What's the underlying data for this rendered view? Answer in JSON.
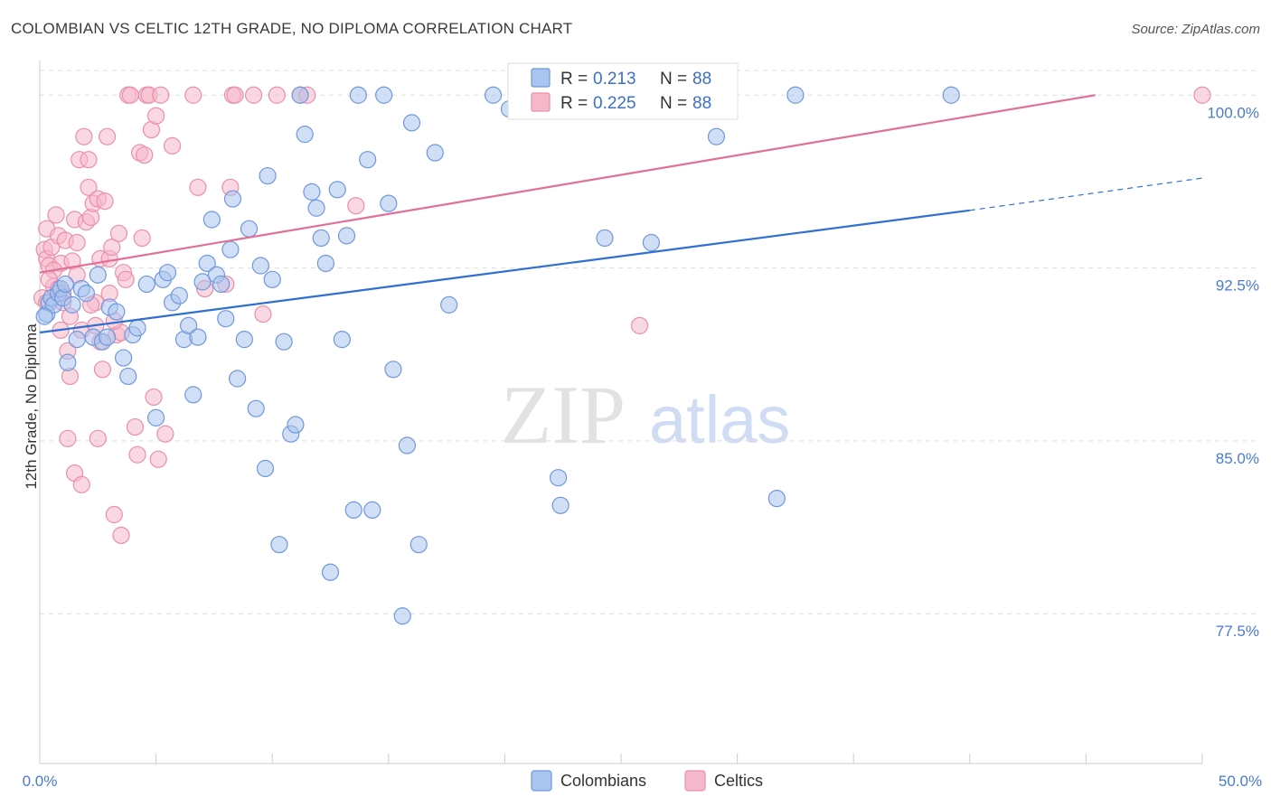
{
  "title": "COLOMBIAN VS CELTIC 12TH GRADE, NO DIPLOMA CORRELATION CHART",
  "source": "Source: ZipAtlas.com",
  "colors": {
    "colombians_fill": "#a9c4ef",
    "colombians_stroke": "#6f98dd",
    "colombians_line": "#2f6fd0",
    "celtics_fill": "#f5b8cb",
    "celtics_stroke": "#ea8fac",
    "celtics_line": "#e0709a",
    "grid": "#dddddd",
    "tick_label": "#4a7bd0"
  },
  "legend": {
    "colombians": {
      "r_label": "R =",
      "r_value": "0.213",
      "n_label": "N =",
      "n_value": "88"
    },
    "celtics": {
      "r_label": "R =",
      "r_value": "0.225",
      "n_label": "N =",
      "n_value": "88"
    }
  },
  "watermark": {
    "zip": "ZIP",
    "atlas": "atlas"
  },
  "chart_data": {
    "type": "scatter",
    "title": "COLOMBIAN VS CELTIC 12TH GRADE, NO DIPLOMA CORRELATION CHART",
    "xlabel": "",
    "ylabel": "12th Grade, No Diploma",
    "xlim": [
      0,
      50
    ],
    "ylim": [
      71,
      101.5
    ],
    "x_tick_labels": [
      "0.0%",
      "50.0%"
    ],
    "y_ticks": [
      77.5,
      85.0,
      92.5,
      100.0
    ],
    "y_tick_labels": [
      "77.5%",
      "85.0%",
      "92.5%",
      "100.0%"
    ],
    "grid": true,
    "legend_placement": "top-center",
    "series": [
      {
        "name": "Colombians",
        "r": 0.213,
        "n": 88,
        "trend": {
          "x0": 0,
          "y0": 89.7,
          "x1": 40,
          "y1": 95.0,
          "dashed_to_x": 50,
          "dashed_to_y": 96.4
        },
        "points": [
          [
            0.3,
            90.5
          ],
          [
            0.4,
            91.0
          ],
          [
            0.5,
            91.2
          ],
          [
            0.6,
            90.9
          ],
          [
            0.8,
            91.4
          ],
          [
            0.9,
            91.6
          ],
          [
            1.0,
            91.2
          ],
          [
            1.2,
            88.4
          ],
          [
            1.4,
            90.9
          ],
          [
            1.6,
            89.4
          ],
          [
            1.8,
            91.6
          ],
          [
            2.0,
            91.4
          ],
          [
            2.3,
            89.5
          ],
          [
            2.5,
            92.2
          ],
          [
            2.7,
            89.3
          ],
          [
            2.9,
            89.5
          ],
          [
            3.0,
            90.8
          ],
          [
            3.3,
            90.6
          ],
          [
            3.6,
            88.6
          ],
          [
            3.8,
            87.8
          ],
          [
            4.0,
            89.6
          ],
          [
            4.2,
            89.9
          ],
          [
            4.6,
            91.8
          ],
          [
            5.0,
            86.0
          ],
          [
            5.3,
            92.0
          ],
          [
            5.5,
            92.3
          ],
          [
            5.7,
            91.0
          ],
          [
            6.0,
            91.3
          ],
          [
            6.2,
            89.4
          ],
          [
            6.4,
            90.0
          ],
          [
            6.6,
            87.0
          ],
          [
            6.8,
            89.5
          ],
          [
            7.0,
            91.9
          ],
          [
            7.2,
            92.7
          ],
          [
            7.4,
            94.6
          ],
          [
            7.6,
            92.2
          ],
          [
            7.8,
            91.8
          ],
          [
            8.0,
            90.3
          ],
          [
            8.2,
            93.3
          ],
          [
            8.3,
            95.5
          ],
          [
            8.5,
            87.7
          ],
          [
            8.8,
            89.4
          ],
          [
            9.0,
            94.2
          ],
          [
            9.3,
            86.4
          ],
          [
            9.5,
            92.6
          ],
          [
            9.7,
            83.8
          ],
          [
            9.8,
            96.5
          ],
          [
            10.0,
            92.0
          ],
          [
            10.3,
            80.5
          ],
          [
            10.5,
            89.3
          ],
          [
            10.8,
            85.3
          ],
          [
            11.0,
            85.7
          ],
          [
            11.2,
            100.0
          ],
          [
            11.4,
            98.3
          ],
          [
            11.7,
            95.8
          ],
          [
            11.9,
            95.1
          ],
          [
            12.1,
            93.8
          ],
          [
            12.3,
            92.7
          ],
          [
            12.5,
            79.3
          ],
          [
            12.8,
            95.9
          ],
          [
            13.0,
            89.4
          ],
          [
            13.2,
            93.9
          ],
          [
            13.5,
            82.0
          ],
          [
            13.7,
            100.0
          ],
          [
            14.1,
            97.2
          ],
          [
            14.3,
            82.0
          ],
          [
            14.8,
            100.0
          ],
          [
            15.0,
            95.3
          ],
          [
            15.2,
            88.1
          ],
          [
            15.6,
            77.4
          ],
          [
            15.8,
            84.8
          ],
          [
            16.0,
            98.8
          ],
          [
            16.3,
            80.5
          ],
          [
            17.0,
            97.5
          ],
          [
            17.6,
            90.9
          ],
          [
            19.5,
            100.0
          ],
          [
            20.2,
            99.4
          ],
          [
            22.3,
            83.4
          ],
          [
            22.4,
            82.2
          ],
          [
            24.3,
            93.8
          ],
          [
            26.3,
            93.6
          ],
          [
            27.0,
            100.0
          ],
          [
            29.1,
            98.2
          ],
          [
            31.7,
            82.5
          ],
          [
            32.5,
            100.0
          ],
          [
            39.2,
            100.0
          ],
          [
            0.2,
            90.4
          ],
          [
            1.1,
            91.8
          ]
        ]
      },
      {
        "name": "Celtics",
        "r": 0.225,
        "n": 88,
        "trend": {
          "x0": 0,
          "y0": 92.3,
          "x1": 45.4,
          "y1": 100.0
        },
        "points": [
          [
            0.1,
            91.2
          ],
          [
            0.2,
            93.3
          ],
          [
            0.3,
            92.9
          ],
          [
            0.3,
            94.2
          ],
          [
            0.4,
            92.6
          ],
          [
            0.5,
            93.4
          ],
          [
            0.6,
            91.7
          ],
          [
            0.7,
            94.8
          ],
          [
            0.8,
            93.9
          ],
          [
            0.9,
            92.7
          ],
          [
            1.0,
            91.4
          ],
          [
            1.1,
            93.7
          ],
          [
            1.2,
            88.9
          ],
          [
            1.2,
            85.1
          ],
          [
            1.3,
            87.8
          ],
          [
            1.4,
            92.8
          ],
          [
            1.5,
            94.6
          ],
          [
            1.5,
            83.6
          ],
          [
            1.6,
            93.6
          ],
          [
            1.7,
            97.2
          ],
          [
            1.8,
            89.8
          ],
          [
            1.8,
            83.1
          ],
          [
            1.9,
            98.2
          ],
          [
            2.0,
            94.5
          ],
          [
            2.1,
            96.0
          ],
          [
            2.1,
            97.2
          ],
          [
            2.2,
            94.7
          ],
          [
            2.3,
            95.3
          ],
          [
            2.4,
            91.0
          ],
          [
            2.4,
            90.0
          ],
          [
            2.5,
            95.5
          ],
          [
            2.5,
            85.1
          ],
          [
            2.6,
            92.9
          ],
          [
            2.7,
            88.1
          ],
          [
            2.8,
            95.4
          ],
          [
            2.9,
            98.2
          ],
          [
            3.0,
            92.9
          ],
          [
            3.1,
            93.4
          ],
          [
            3.2,
            81.8
          ],
          [
            3.3,
            89.6
          ],
          [
            3.4,
            94.0
          ],
          [
            3.5,
            80.9
          ],
          [
            3.5,
            89.7
          ],
          [
            3.6,
            92.3
          ],
          [
            3.8,
            100.0
          ],
          [
            3.9,
            100.0
          ],
          [
            4.1,
            85.6
          ],
          [
            4.2,
            84.4
          ],
          [
            4.3,
            97.5
          ],
          [
            4.4,
            93.8
          ],
          [
            4.5,
            97.4
          ],
          [
            4.6,
            100.0
          ],
          [
            4.7,
            100.0
          ],
          [
            4.8,
            98.5
          ],
          [
            4.9,
            86.9
          ],
          [
            5.0,
            99.1
          ],
          [
            5.1,
            84.2
          ],
          [
            5.2,
            100.0
          ],
          [
            5.4,
            85.3
          ],
          [
            5.7,
            97.8
          ],
          [
            6.6,
            100.0
          ],
          [
            6.8,
            96.0
          ],
          [
            7.1,
            91.6
          ],
          [
            8.0,
            91.8
          ],
          [
            8.2,
            96.0
          ],
          [
            8.3,
            100.0
          ],
          [
            8.4,
            100.0
          ],
          [
            9.2,
            100.0
          ],
          [
            9.6,
            90.5
          ],
          [
            10.2,
            100.0
          ],
          [
            11.2,
            100.0
          ],
          [
            11.5,
            100.0
          ],
          [
            13.6,
            95.2
          ],
          [
            25.8,
            90.0
          ],
          [
            50.0,
            100.0
          ],
          [
            0.6,
            92.4
          ],
          [
            1.0,
            91.0
          ],
          [
            0.4,
            92.0
          ],
          [
            0.8,
            91.6
          ],
          [
            1.6,
            92.2
          ],
          [
            2.2,
            90.9
          ],
          [
            3.0,
            91.4
          ],
          [
            3.7,
            92.0
          ],
          [
            0.3,
            91.0
          ],
          [
            1.3,
            90.4
          ],
          [
            0.9,
            89.8
          ],
          [
            2.6,
            89.3
          ],
          [
            3.2,
            90.2
          ]
        ]
      }
    ]
  },
  "bottom_legend": {
    "colombians_label": "Colombians",
    "celtics_label": "Celtics"
  }
}
